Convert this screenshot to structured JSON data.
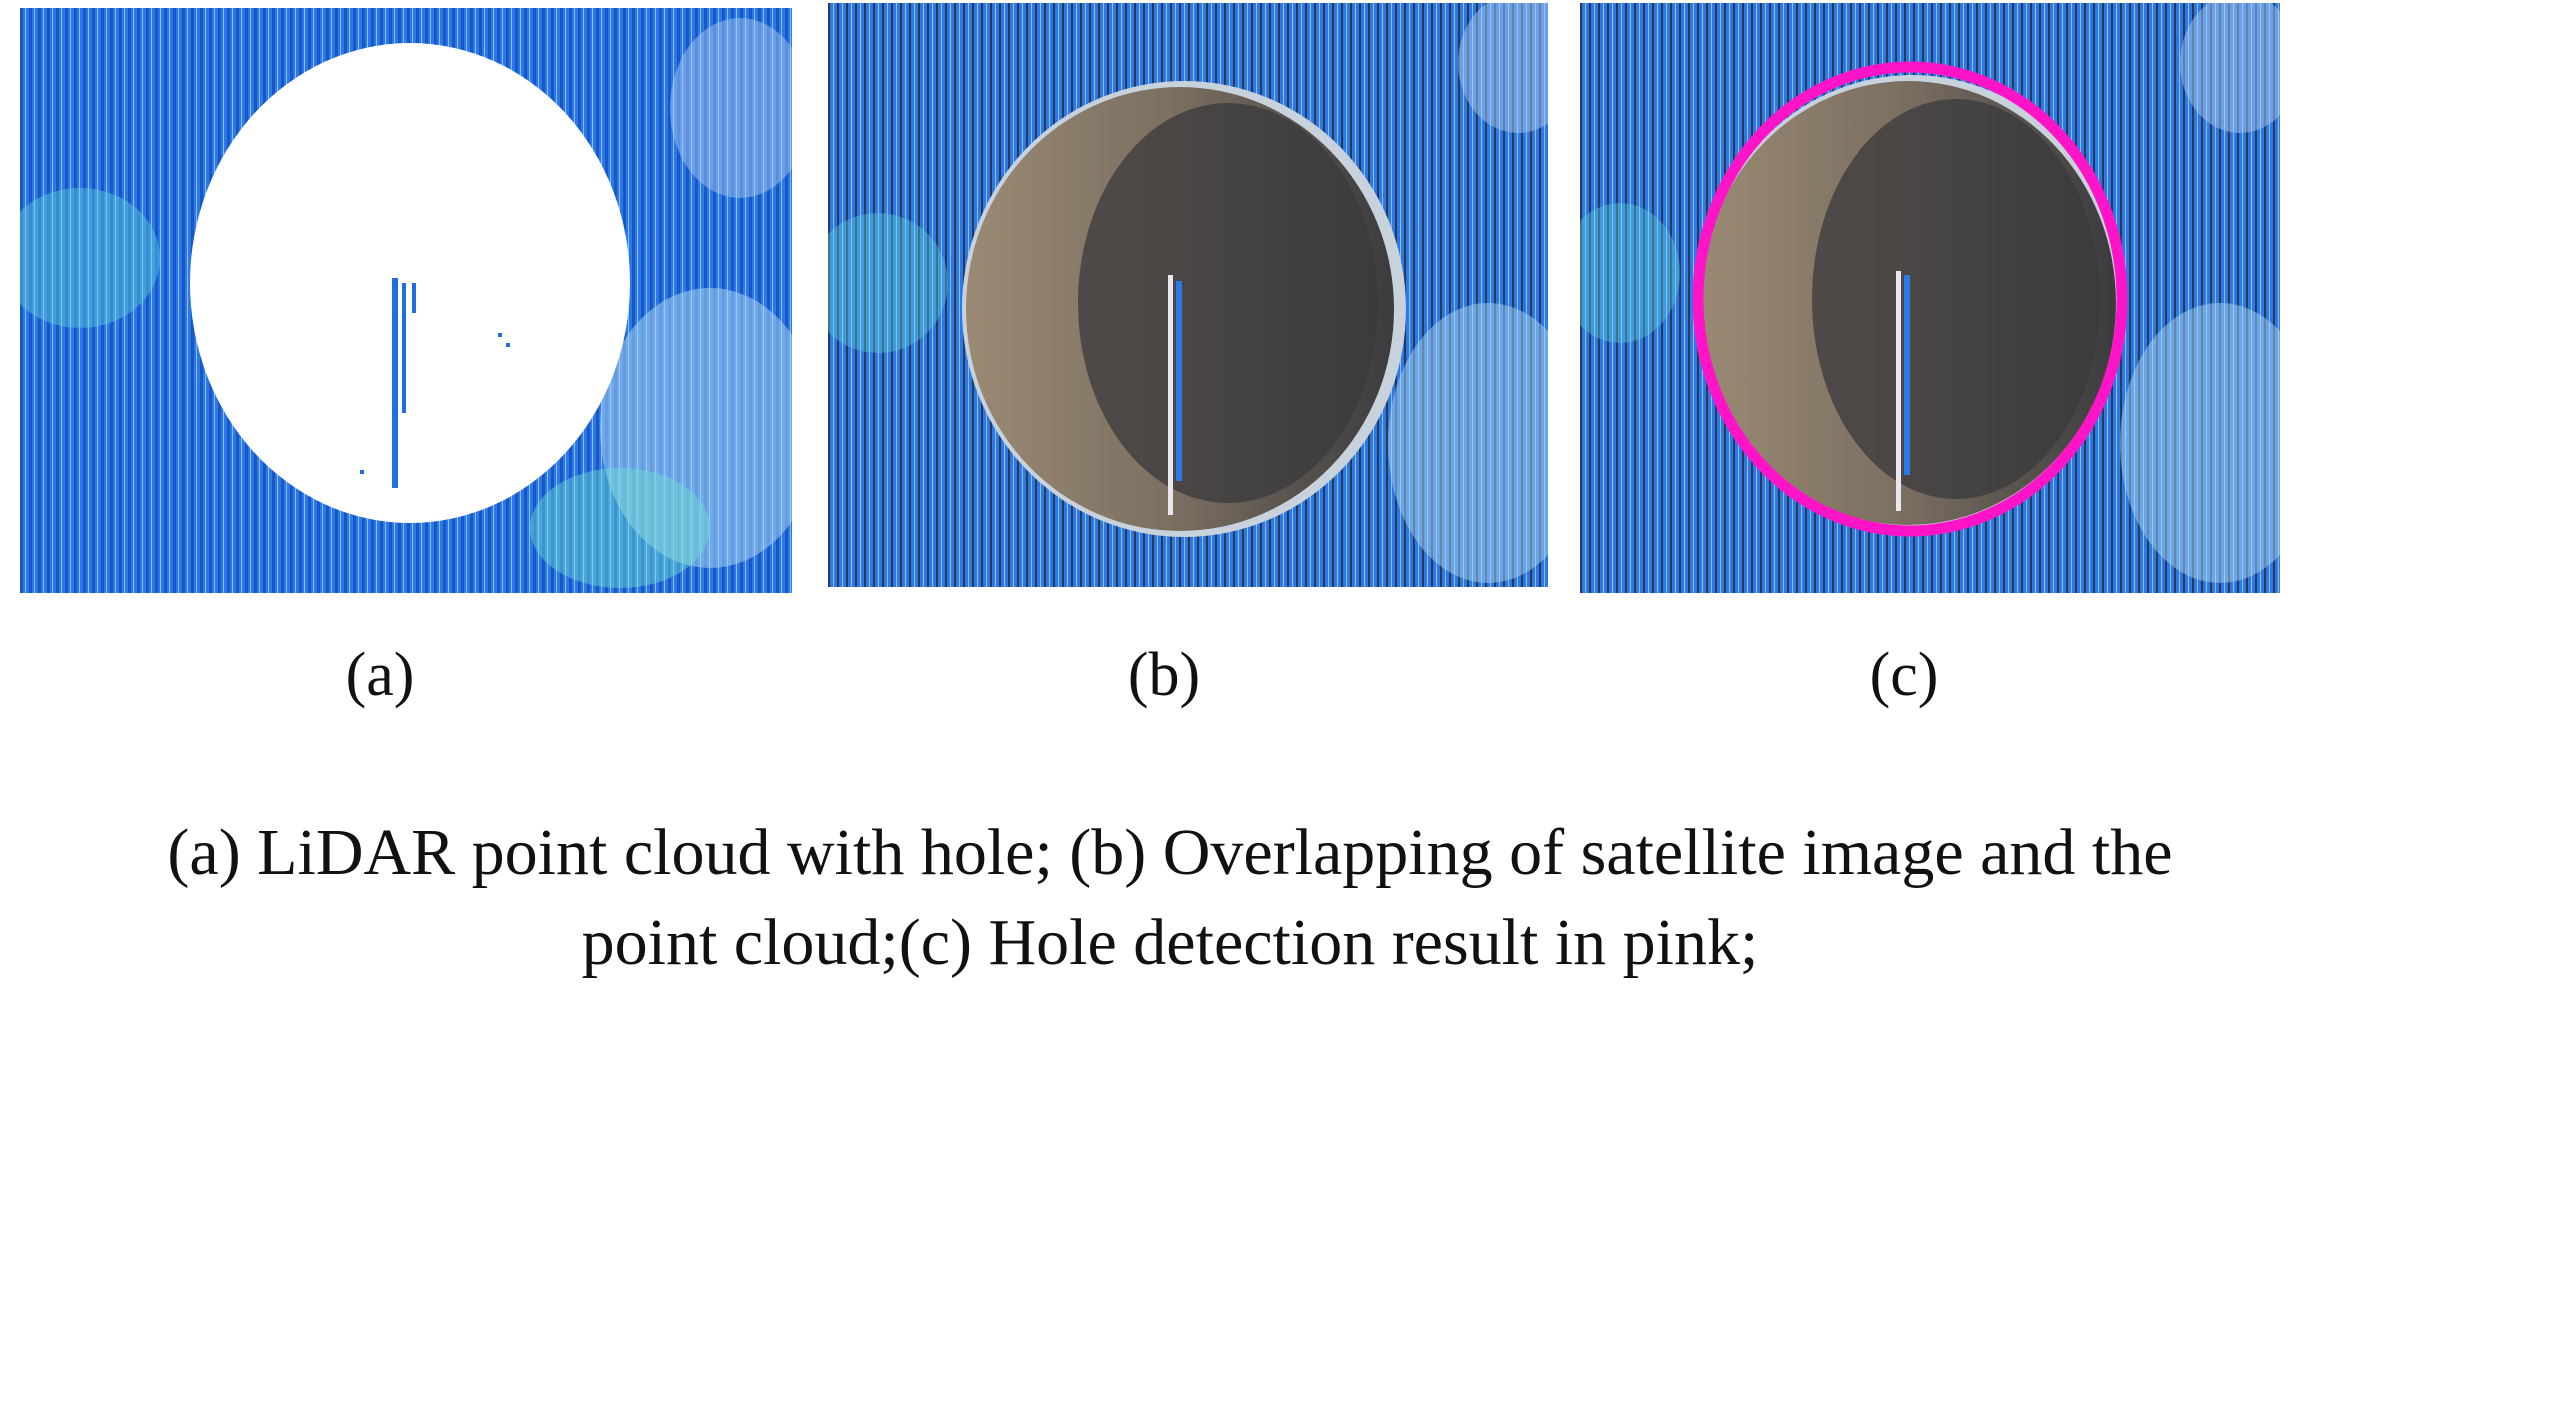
{
  "figure": {
    "panels": [
      {
        "id": "a",
        "label": "(a)",
        "content": "lidar-point-cloud"
      },
      {
        "id": "b",
        "label": "(b)",
        "content": "satellite-overlay"
      },
      {
        "id": "c",
        "label": "(c)",
        "content": "hole-detection"
      }
    ],
    "caption_line_1": "(a) LiDAR point cloud with hole; (b) Overlapping of  satellite image and the",
    "caption_line_2": "point cloud;(c) Hole detection result in pink;",
    "colors": {
      "point_blue": "#1f6fe0",
      "point_light": "#7fb2e8",
      "point_cyan": "#5fe0d8",
      "hole_dark": "#3a3a3c",
      "hole_sand": "#8a7a66",
      "detection_pink": "#ff14c8"
    }
  }
}
